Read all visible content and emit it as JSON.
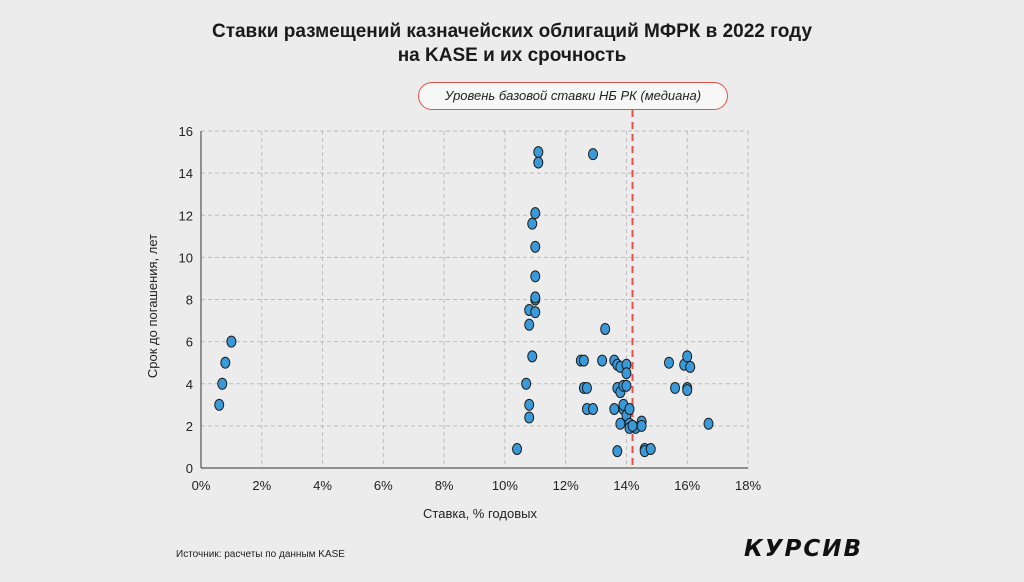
{
  "title_lines": [
    "Ставки размещений казначейских облигаций МФРК в 2022 году",
    "на KASE и их срочность"
  ],
  "source": "Источник: расчеты по данным KASE",
  "logo": "КУРСИВ",
  "chart_data": {
    "type": "scatter",
    "xlabel": "Ставка, % годовых",
    "ylabel": "Срок до погашения, лет",
    "xlim": [
      0,
      18
    ],
    "ylim": [
      0,
      16
    ],
    "x_ticks": [
      0,
      2,
      4,
      6,
      8,
      10,
      12,
      14,
      16,
      18
    ],
    "x_tick_labels": [
      "0%",
      "2%",
      "4%",
      "6%",
      "8%",
      "10%",
      "12%",
      "14%",
      "16%",
      "18%"
    ],
    "y_ticks": [
      0,
      2,
      4,
      6,
      8,
      10,
      12,
      14,
      16
    ],
    "y_tick_labels": [
      "0",
      "2",
      "4",
      "6",
      "8",
      "10",
      "12",
      "14",
      "16"
    ],
    "grid": true,
    "point_color": "#3a9ad9",
    "reference_line": {
      "x": 14.2,
      "label": "Уровень базовой ставки НБ РК (медиана)",
      "color": "#e0524a"
    },
    "points": [
      [
        0.6,
        3.0
      ],
      [
        0.7,
        4.0
      ],
      [
        0.8,
        5.0
      ],
      [
        1.0,
        6.0
      ],
      [
        10.4,
        0.9
      ],
      [
        10.7,
        4.0
      ],
      [
        10.8,
        2.4
      ],
      [
        10.8,
        3.0
      ],
      [
        10.8,
        6.8
      ],
      [
        10.8,
        7.5
      ],
      [
        10.9,
        5.3
      ],
      [
        10.9,
        11.6
      ],
      [
        11.0,
        7.4
      ],
      [
        11.0,
        8.0
      ],
      [
        11.0,
        8.1
      ],
      [
        11.0,
        9.1
      ],
      [
        11.0,
        10.5
      ],
      [
        11.0,
        12.1
      ],
      [
        11.1,
        15.0
      ],
      [
        11.1,
        14.5
      ],
      [
        12.5,
        5.1
      ],
      [
        12.6,
        5.1
      ],
      [
        12.6,
        3.8
      ],
      [
        12.7,
        3.8
      ],
      [
        12.7,
        2.8
      ],
      [
        12.9,
        2.8
      ],
      [
        12.9,
        14.9
      ],
      [
        13.2,
        5.1
      ],
      [
        13.3,
        6.6
      ],
      [
        13.6,
        5.1
      ],
      [
        13.6,
        2.8
      ],
      [
        13.7,
        3.8
      ],
      [
        13.7,
        4.9
      ],
      [
        13.7,
        0.8
      ],
      [
        13.8,
        2.1
      ],
      [
        13.8,
        3.6
      ],
      [
        13.8,
        4.8
      ],
      [
        13.9,
        3.9
      ],
      [
        13.9,
        2.8
      ],
      [
        13.9,
        3.0
      ],
      [
        14.0,
        2.5
      ],
      [
        14.0,
        3.9
      ],
      [
        14.0,
        4.9
      ],
      [
        14.0,
        4.5
      ],
      [
        14.1,
        2.8
      ],
      [
        14.1,
        2.1
      ],
      [
        14.1,
        1.9
      ],
      [
        14.3,
        1.9
      ],
      [
        14.5,
        2.2
      ],
      [
        14.5,
        2.0
      ],
      [
        14.6,
        0.9
      ],
      [
        14.6,
        0.8
      ],
      [
        14.8,
        0.9
      ],
      [
        14.2,
        2.0
      ],
      [
        15.4,
        5.0
      ],
      [
        15.6,
        3.8
      ],
      [
        15.9,
        4.9
      ],
      [
        16.0,
        5.3
      ],
      [
        16.0,
        3.8
      ],
      [
        16.0,
        3.7
      ],
      [
        16.1,
        4.8
      ],
      [
        16.7,
        2.1
      ]
    ]
  }
}
